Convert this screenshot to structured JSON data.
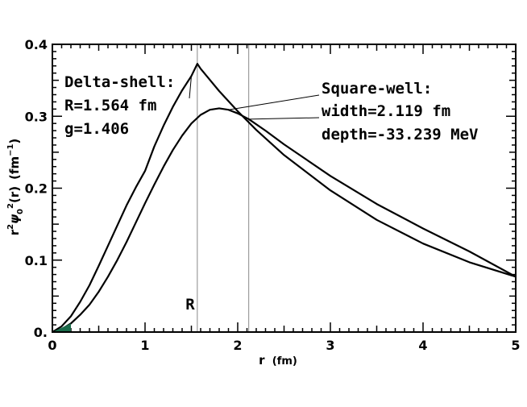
{
  "chart_data": {
    "type": "line",
    "xlabel_main": "r",
    "xlabel_unit": "(fm)",
    "ylabel": {
      "a": "r",
      "a_sup": "2",
      "b": "ψ",
      "b_sub": "0",
      "b_sup": "2",
      "c": "(r)",
      "d": "(fm",
      "d_sup": "−1",
      "e": ")"
    },
    "xlim": [
      0,
      5
    ],
    "ylim": [
      0,
      0.4
    ],
    "x_ticks": [
      0,
      1,
      2,
      3,
      4,
      5
    ],
    "x_tick_labels": [
      "0",
      "1",
      "2",
      "3",
      "4",
      "5"
    ],
    "y_ticks": [
      0,
      0.1,
      0.2,
      0.3,
      0.4
    ],
    "y_tick_labels": [
      "0.",
      "0.1",
      "0.2",
      "0.3",
      "0.4"
    ],
    "vlines": [
      {
        "x": 1.564,
        "label": "R"
      },
      {
        "x": 2.119,
        "label": ""
      }
    ],
    "series": [
      {
        "x": [
          0,
          0.1,
          0.2,
          0.3,
          0.4,
          0.5,
          0.6,
          0.7,
          0.8,
          0.9,
          1.0,
          1.1,
          1.2,
          1.3,
          1.4,
          1.5,
          1.564,
          1.6,
          1.8,
          2.0,
          2.2,
          2.5,
          3.0,
          3.5,
          4.0,
          4.5,
          5.0
        ],
        "values": [
          0,
          0.008,
          0.022,
          0.042,
          0.065,
          0.092,
          0.12,
          0.148,
          0.176,
          0.201,
          0.224,
          0.258,
          0.287,
          0.313,
          0.336,
          0.356,
          0.373,
          0.366,
          0.335,
          0.307,
          0.281,
          0.246,
          0.197,
          0.156,
          0.123,
          0.097,
          0.077
        ]
      },
      {
        "x": [
          0,
          0.1,
          0.2,
          0.3,
          0.4,
          0.5,
          0.6,
          0.7,
          0.8,
          0.9,
          1.0,
          1.1,
          1.2,
          1.3,
          1.4,
          1.5,
          1.6,
          1.7,
          1.8,
          1.9,
          2.0,
          2.119,
          2.3,
          2.5,
          3.0,
          3.5,
          4.0,
          4.5,
          5.0
        ],
        "values": [
          0,
          0.004,
          0.012,
          0.024,
          0.038,
          0.056,
          0.077,
          0.1,
          0.125,
          0.152,
          0.179,
          0.205,
          0.23,
          0.253,
          0.273,
          0.29,
          0.302,
          0.309,
          0.311,
          0.309,
          0.304,
          0.296,
          0.28,
          0.261,
          0.217,
          0.178,
          0.144,
          0.112,
          0.077
        ]
      }
    ],
    "annotations": [
      {
        "lines": [
          "Delta-shell:",
          "R=1.564 fm",
          "g=1.406"
        ]
      },
      {
        "lines": [
          "Square-well:",
          "width=2.119 fm",
          "depth=-33.239 MeV"
        ]
      }
    ],
    "grid": false,
    "legend": "none"
  }
}
